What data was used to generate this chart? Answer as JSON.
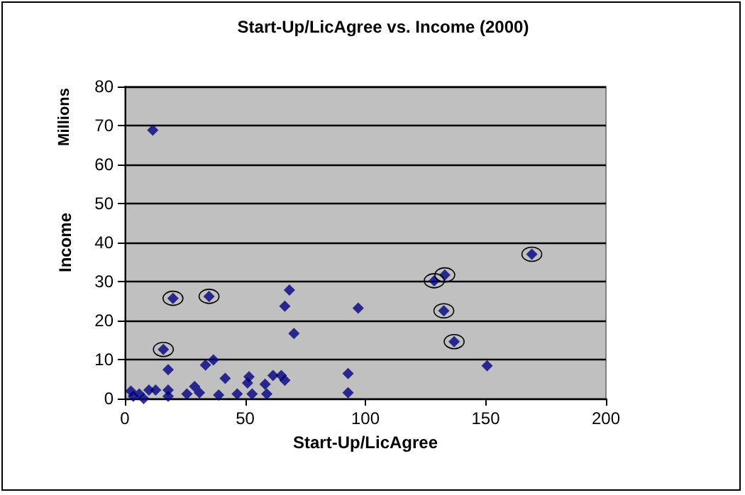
{
  "chart_data": {
    "type": "scatter",
    "title": "Start-Up/LicAgree vs. Income (2000)",
    "xlabel": "Start-Up/LicAgree",
    "ylabel": "Income",
    "annotations": [
      "Millions"
    ],
    "xlim": [
      0,
      200
    ],
    "xticks": [
      0,
      50,
      100,
      150,
      200
    ],
    "ylim": [
      0,
      80
    ],
    "yticks": [
      0,
      10,
      20,
      30,
      40,
      50,
      60,
      70,
      80
    ],
    "grid": "y",
    "marker": "diamond",
    "series": [
      {
        "color": "#000080",
        "x": [
          11.6,
          18,
          18,
          18,
          2.5,
          3.5,
          6,
          7.8,
          10,
          12.8,
          25.8,
          29,
          31,
          33.5,
          36.8,
          39,
          41.7,
          46.7,
          51,
          51.6,
          52.9,
          58.3,
          59,
          61.6,
          65,
          66.5,
          66.5,
          68.4,
          70.3,
          97,
          92.8,
          92.8,
          150.6
        ],
        "values": [
          68.8,
          7.4,
          2.2,
          0.6,
          1.9,
          0.6,
          1.2,
          0,
          2.2,
          2.2,
          1.2,
          3.1,
          1.5,
          8.6,
          9.9,
          0.9,
          5.2,
          1.2,
          4,
          5.6,
          1.2,
          3.7,
          1.2,
          5.9,
          5.9,
          4.7,
          23.7,
          27.8,
          16.7,
          23.2,
          6.4,
          1.5,
          8.4
        ]
      },
      {
        "color": "#000080",
        "x": [
          20,
          16,
          35,
          128.6,
          133,
          132.6,
          136.9,
          169.2
        ],
        "values": [
          25.7,
          12.6,
          26.2,
          30.2,
          31.7,
          22.5,
          14.6,
          37
        ]
      }
    ]
  }
}
